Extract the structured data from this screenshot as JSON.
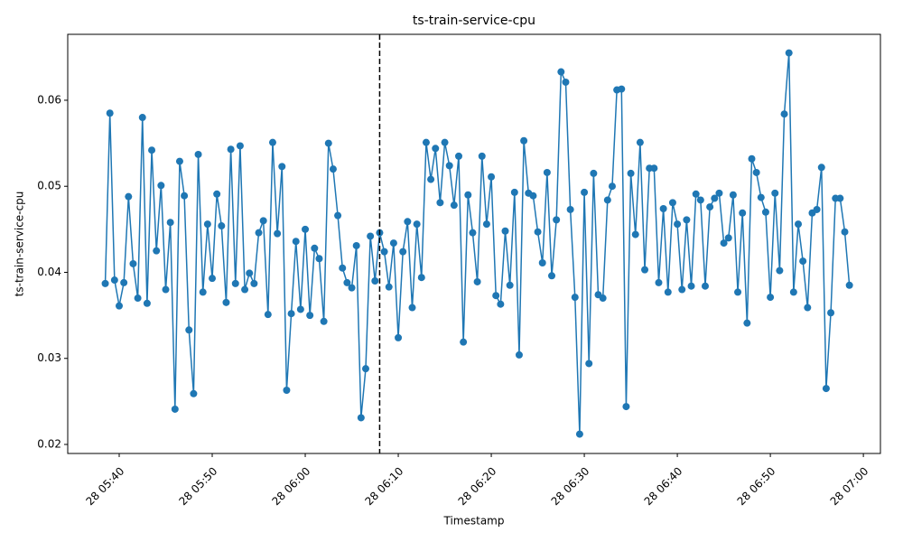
{
  "chart_data": {
    "type": "line",
    "title": "ts-train-service-cpu",
    "x_label": "Timestamp",
    "y_label": "ts-train-service-cpu",
    "color": "#1f77b4",
    "marker": "o",
    "vline": "28 06:08",
    "xlim": [
      "28 05:34:28",
      "28 07:01:50"
    ],
    "xticks": [
      "28 05:40",
      "28 05:50",
      "28 06:00",
      "28 06:10",
      "28 06:20",
      "28 06:30",
      "28 06:40",
      "28 06:50",
      "28 07:00"
    ],
    "ylim": [
      0.01895,
      0.06766
    ],
    "yticks": [
      0.02,
      0.03,
      0.04,
      0.05,
      0.06
    ],
    "x": [
      "28 05:38:30",
      "28 05:39:00",
      "28 05:39:30",
      "28 05:40:00",
      "28 05:40:30",
      "28 05:41:00",
      "28 05:41:30",
      "28 05:42:00",
      "28 05:42:30",
      "28 05:43:00",
      "28 05:43:30",
      "28 05:44:00",
      "28 05:44:30",
      "28 05:45:00",
      "28 05:45:30",
      "28 05:46:00",
      "28 05:46:30",
      "28 05:47:00",
      "28 05:47:30",
      "28 05:48:00",
      "28 05:48:30",
      "28 05:49:00",
      "28 05:49:30",
      "28 05:50:00",
      "28 05:50:30",
      "28 05:51:00",
      "28 05:51:30",
      "28 05:52:00",
      "28 05:52:30",
      "28 05:53:00",
      "28 05:53:30",
      "28 05:54:00",
      "28 05:54:30",
      "28 05:55:00",
      "28 05:55:30",
      "28 05:56:00",
      "28 05:56:30",
      "28 05:57:00",
      "28 05:57:30",
      "28 05:58:00",
      "28 05:58:30",
      "28 05:59:00",
      "28 05:59:30",
      "28 06:00:00",
      "28 06:00:30",
      "28 06:01:00",
      "28 06:01:30",
      "28 06:02:00",
      "28 06:02:30",
      "28 06:03:00",
      "28 06:03:30",
      "28 06:04:00",
      "28 06:04:30",
      "28 06:05:00",
      "28 06:05:30",
      "28 06:06:00",
      "28 06:06:30",
      "28 06:07:00",
      "28 06:07:30",
      "28 06:08:00",
      "28 06:08:30",
      "28 06:09:00",
      "28 06:09:30",
      "28 06:10:00",
      "28 06:10:30",
      "28 06:11:00",
      "28 06:11:30",
      "28 06:12:00",
      "28 06:12:30",
      "28 06:13:00",
      "28 06:13:30",
      "28 06:14:00",
      "28 06:14:30",
      "28 06:15:00",
      "28 06:15:30",
      "28 06:16:00",
      "28 06:16:30",
      "28 06:17:00",
      "28 06:17:30",
      "28 06:18:00",
      "28 06:18:30",
      "28 06:19:00",
      "28 06:19:30",
      "28 06:20:00",
      "28 06:20:30",
      "28 06:21:00",
      "28 06:21:30",
      "28 06:22:00",
      "28 06:22:30",
      "28 06:23:00",
      "28 06:23:30",
      "28 06:24:00",
      "28 06:24:30",
      "28 06:25:00",
      "28 06:25:30",
      "28 06:26:00",
      "28 06:26:30",
      "28 06:27:00",
      "28 06:27:30",
      "28 06:28:00",
      "28 06:28:30",
      "28 06:29:00",
      "28 06:29:30",
      "28 06:30:00",
      "28 06:30:30",
      "28 06:31:00",
      "28 06:31:30",
      "28 06:32:00",
      "28 06:32:30",
      "28 06:33:00",
      "28 06:33:30",
      "28 06:34:00",
      "28 06:34:30",
      "28 06:35:00",
      "28 06:35:30",
      "28 06:36:00",
      "28 06:36:30",
      "28 06:37:00",
      "28 06:37:30",
      "28 06:38:00",
      "28 06:38:30",
      "28 06:39:00",
      "28 06:39:30",
      "28 06:40:00",
      "28 06:40:30",
      "28 06:41:00",
      "28 06:41:30",
      "28 06:42:00",
      "28 06:42:30",
      "28 06:43:00",
      "28 06:43:30",
      "28 06:44:00",
      "28 06:44:30",
      "28 06:45:00",
      "28 06:45:30",
      "28 06:46:00",
      "28 06:46:30",
      "28 06:47:00",
      "28 06:47:30",
      "28 06:48:00",
      "28 06:48:30",
      "28 06:49:00",
      "28 06:49:30",
      "28 06:50:00",
      "28 06:50:30",
      "28 06:51:00",
      "28 06:51:30",
      "28 06:52:00",
      "28 06:52:30",
      "28 06:53:00",
      "28 06:53:30",
      "28 06:54:00",
      "28 06:54:30",
      "28 06:55:00",
      "28 06:55:30",
      "28 06:56:00",
      "28 06:56:30",
      "28 06:57:00",
      "28 06:57:30",
      "28 06:58:00",
      "28 06:58:30"
    ],
    "values": [
      0.0387,
      0.0585,
      0.0391,
      0.0361,
      0.0388,
      0.0488,
      0.041,
      0.037,
      0.058,
      0.0364,
      0.0542,
      0.0425,
      0.0501,
      0.038,
      0.0458,
      0.0241,
      0.0529,
      0.0489,
      0.0333,
      0.0259,
      0.0537,
      0.0377,
      0.0456,
      0.0393,
      0.0491,
      0.0454,
      0.0365,
      0.0543,
      0.0387,
      0.0547,
      0.038,
      0.0399,
      0.0387,
      0.0446,
      0.046,
      0.0351,
      0.0551,
      0.0445,
      0.0523,
      0.0263,
      0.0352,
      0.0436,
      0.0357,
      0.045,
      0.035,
      0.0428,
      0.0416,
      0.0343,
      0.055,
      0.052,
      0.0466,
      0.0405,
      0.0388,
      0.0382,
      0.0431,
      0.0231,
      0.0288,
      0.0442,
      0.039,
      0.0446,
      0.0424,
      0.0383,
      0.0434,
      0.0324,
      0.0424,
      0.0459,
      0.0359,
      0.0456,
      0.0394,
      0.0551,
      0.0508,
      0.0544,
      0.0481,
      0.0551,
      0.0524,
      0.0478,
      0.0535,
      0.0319,
      0.049,
      0.0446,
      0.0389,
      0.0535,
      0.0456,
      0.0511,
      0.0373,
      0.0363,
      0.0448,
      0.0385,
      0.0493,
      0.0304,
      0.0553,
      0.0492,
      0.0489,
      0.0447,
      0.0411,
      0.0516,
      0.0396,
      0.0461,
      0.0633,
      0.0621,
      0.0473,
      0.0371,
      0.0212,
      0.0493,
      0.0294,
      0.0515,
      0.0374,
      0.037,
      0.0484,
      0.05,
      0.0612,
      0.0613,
      0.0244,
      0.0515,
      0.0444,
      0.0551,
      0.0403,
      0.0521,
      0.0521,
      0.0388,
      0.0474,
      0.0377,
      0.0481,
      0.0456,
      0.038,
      0.0461,
      0.0384,
      0.0491,
      0.0484,
      0.0384,
      0.0476,
      0.0486,
      0.0492,
      0.0434,
      0.044,
      0.049,
      0.0377,
      0.0469,
      0.0341,
      0.0532,
      0.0516,
      0.0487,
      0.047,
      0.0371,
      0.0492,
      0.0402,
      0.0584,
      0.0655,
      0.0377,
      0.0456,
      0.0413,
      0.0359,
      0.0469,
      0.0473,
      0.0522,
      0.0265,
      0.0353,
      0.0486,
      0.0486,
      0.0447,
      0.0385
    ]
  }
}
